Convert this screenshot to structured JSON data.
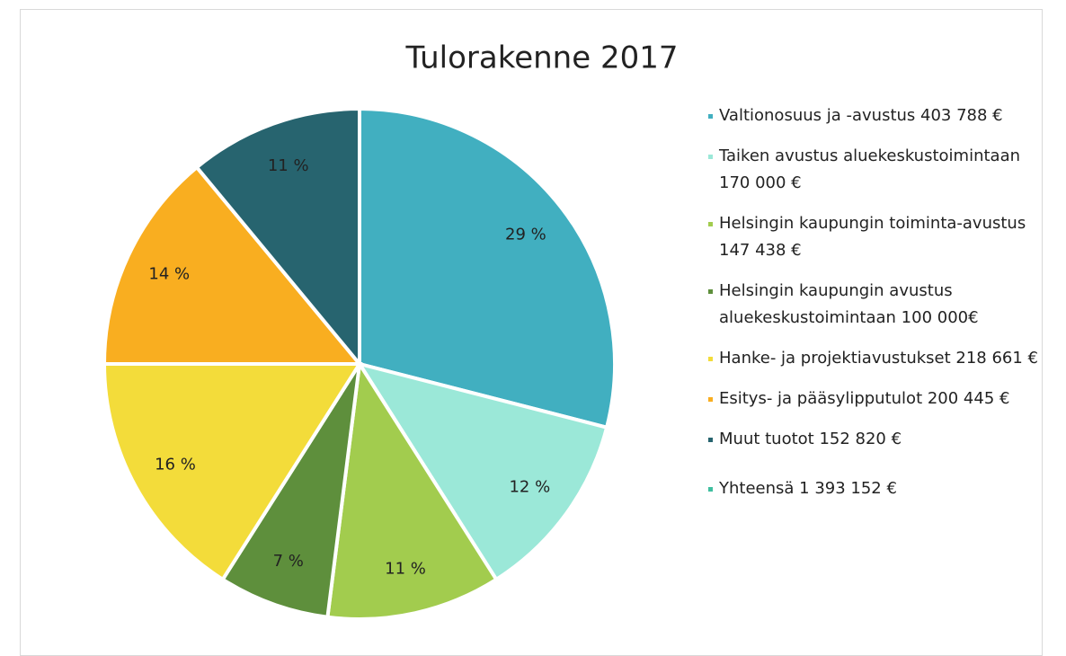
{
  "chart_data": {
    "type": "pie",
    "title": "Tulorakenne 2017",
    "series": [
      {
        "name": "Valtionosuus ja -avustus 403 788 €",
        "color": "#41afc0"
      },
      {
        "name": "Taiken avustus aluekeskustoimintaan 170 000 €",
        "color": "#9be8d8"
      },
      {
        "name": "Helsingin kaupungin toiminta-avustus 147 438 €",
        "color": "#a2cc4e"
      },
      {
        "name": "Helsingin kaupungin avustus aluekeskustoimintaan 100 000€",
        "color": "#5e8f3c"
      },
      {
        "name": "Hanke- ja projektiavustukset 218 661 €",
        "color": "#f3dc3a"
      },
      {
        "name": "Esitys- ja pääsylipputulot 200 445 €",
        "color": "#f9ae20"
      },
      {
        "name": "Muut tuotot 152 820 €",
        "color": "#27646f"
      }
    ],
    "values": [
      29,
      12,
      11,
      7,
      16,
      14,
      11
    ],
    "value_labels": [
      "29 %",
      "12 %",
      "11 %",
      "7 %",
      "16 %",
      "14 %",
      "11 %"
    ],
    "total": {
      "name": "Yhteensä 1 393 152 €",
      "color": "#3fbf9f"
    }
  }
}
